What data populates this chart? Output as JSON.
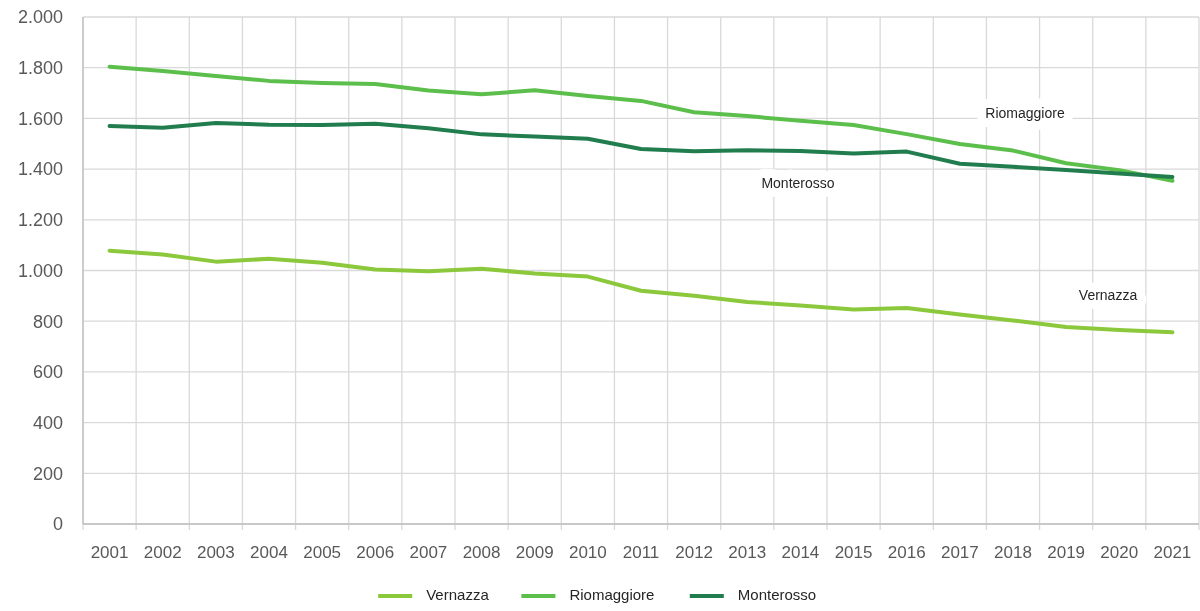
{
  "chart_data": {
    "type": "line",
    "categories": [
      "2001",
      "2002",
      "2003",
      "2004",
      "2005",
      "2006",
      "2007",
      "2008",
      "2009",
      "2010",
      "2011",
      "2012",
      "2013",
      "2014",
      "2015",
      "2016",
      "2017",
      "2018",
      "2019",
      "2020",
      "2021"
    ],
    "ylim": [
      0,
      2000
    ],
    "yticks": [
      0,
      200,
      400,
      600,
      800,
      {
        "value": 1000,
        "label": "1.000"
      },
      {
        "value": 1200,
        "label": "1.200"
      },
      {
        "value": 1400,
        "label": "1.400"
      },
      {
        "value": 1600,
        "label": "1.600"
      },
      {
        "value": 1800,
        "label": "1.800"
      },
      {
        "value": 2000,
        "label": "2.000"
      }
    ],
    "grid": true,
    "legend": "bottom",
    "line_style": "solid",
    "series": [
      {
        "name": "Vernazza",
        "color": "#8cc83c",
        "values": [
          1078,
          1063,
          1035,
          1046,
          1031,
          1004,
          997,
          1007,
          988,
          976,
          920,
          900,
          876,
          862,
          846,
          852,
          826,
          803,
          777,
          765,
          756
        ]
      },
      {
        "name": "Riomaggiore",
        "color": "#5cbf4c",
        "values": [
          1804,
          1787,
          1767,
          1748,
          1740,
          1736,
          1710,
          1695,
          1711,
          1688,
          1669,
          1624,
          1609,
          1591,
          1574,
          1538,
          1499,
          1473,
          1423,
          1396,
          1354
        ]
      },
      {
        "name": "Monterosso",
        "color": "#217d4e",
        "values": [
          1570,
          1563,
          1582,
          1575,
          1574,
          1579,
          1561,
          1537,
          1529,
          1520,
          1479,
          1470,
          1474,
          1471,
          1462,
          1469,
          1421,
          1409,
          1396,
          1383,
          1369
        ]
      }
    ],
    "annotations": [
      "Riomaggiore",
      "Monterosso",
      "Vernazza"
    ]
  }
}
